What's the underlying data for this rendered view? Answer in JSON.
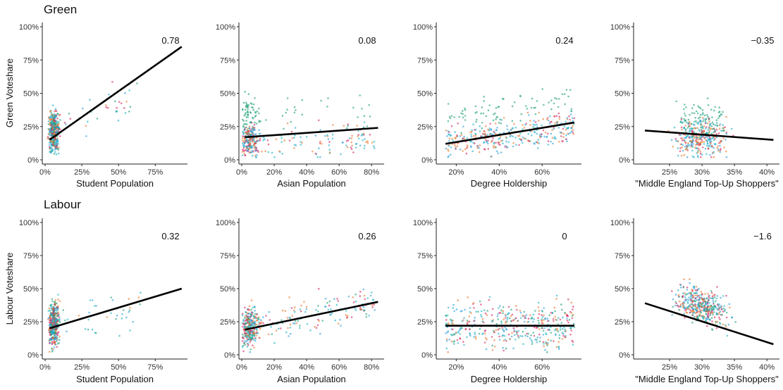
{
  "chart_data": {
    "type": "scatter",
    "rows": [
      {
        "title": "Green",
        "ylabel": "Green Voteshare",
        "ylim": [
          0,
          1
        ],
        "yticks": [
          "0%",
          "25%",
          "50%",
          "75%",
          "100%"
        ],
        "panels": [
          {
            "xlabel": "Student Population",
            "xlim": [
              0,
              0.95
            ],
            "xticks": [
              {
                "v": 0.0,
                "label": "0%"
              },
              {
                "v": 0.25,
                "label": "25%"
              },
              {
                "v": 0.5,
                "label": "50%"
              },
              {
                "v": 0.75,
                "label": "75%"
              }
            ],
            "correlation": "0.78",
            "fit_line": {
              "x": [
                0.03,
                0.93
              ],
              "y": [
                0.15,
                0.85
              ]
            }
          },
          {
            "xlabel": "Asian Population",
            "xlim": [
              0,
              0.86
            ],
            "xticks": [
              {
                "v": 0.0,
                "label": "0%"
              },
              {
                "v": 0.2,
                "label": "20%"
              },
              {
                "v": 0.4,
                "label": "40%"
              },
              {
                "v": 0.6,
                "label": "60%"
              },
              {
                "v": 0.8,
                "label": "80%"
              }
            ],
            "correlation": "0.08",
            "fit_line": {
              "x": [
                0.02,
                0.84
              ],
              "y": [
                0.17,
                0.24
              ]
            }
          },
          {
            "xlabel": "Degree Holdership",
            "xlim": [
              0.12,
              0.77
            ],
            "xticks": [
              {
                "v": 0.2,
                "label": "20%"
              },
              {
                "v": 0.4,
                "label": "40%"
              },
              {
                "v": 0.6,
                "label": "60%"
              }
            ],
            "correlation": "0.24",
            "fit_line": {
              "x": [
                0.15,
                0.75
              ],
              "y": [
                0.12,
                0.28
              ]
            }
          },
          {
            "xlabel": "\"Middle England Top-Up Shoppers\"",
            "xlim": [
              0.2,
              0.415
            ],
            "xticks": [
              {
                "v": 0.25,
                "label": "25%"
              },
              {
                "v": 0.3,
                "label": "30%"
              },
              {
                "v": 0.35,
                "label": "35%"
              },
              {
                "v": 0.4,
                "label": "40%"
              }
            ],
            "correlation": "−0.35",
            "fit_line": {
              "x": [
                0.212,
                0.41
              ],
              "y": [
                0.22,
                0.15
              ]
            }
          }
        ]
      },
      {
        "title": "Labour",
        "ylabel": "Labour Voteshare",
        "ylim": [
          0,
          1
        ],
        "yticks": [
          "0%",
          "25%",
          "50%",
          "75%",
          "100%"
        ],
        "panels": [
          {
            "xlabel": "Student Population",
            "xlim": [
              0,
              0.95
            ],
            "xticks": [
              {
                "v": 0.0,
                "label": "0%"
              },
              {
                "v": 0.25,
                "label": "25%"
              },
              {
                "v": 0.5,
                "label": "50%"
              },
              {
                "v": 0.75,
                "label": "75%"
              }
            ],
            "correlation": "0.32",
            "fit_line": {
              "x": [
                0.03,
                0.93
              ],
              "y": [
                0.2,
                0.5
              ]
            }
          },
          {
            "xlabel": "Asian Population",
            "xlim": [
              0,
              0.86
            ],
            "xticks": [
              {
                "v": 0.0,
                "label": "0%"
              },
              {
                "v": 0.2,
                "label": "20%"
              },
              {
                "v": 0.4,
                "label": "40%"
              },
              {
                "v": 0.6,
                "label": "60%"
              },
              {
                "v": 0.8,
                "label": "80%"
              }
            ],
            "correlation": "0.26",
            "fit_line": {
              "x": [
                0.02,
                0.84
              ],
              "y": [
                0.19,
                0.4
              ]
            }
          },
          {
            "xlabel": "Degree Holdership",
            "xlim": [
              0.12,
              0.77
            ],
            "xticks": [
              {
                "v": 0.2,
                "label": "20%"
              },
              {
                "v": 0.4,
                "label": "40%"
              },
              {
                "v": 0.6,
                "label": "60%"
              }
            ],
            "correlation": "0",
            "fit_line": {
              "x": [
                0.15,
                0.75
              ],
              "y": [
                0.22,
                0.22
              ]
            }
          },
          {
            "xlabel": "\"Middle England Top-Up Shoppers\"",
            "xlim": [
              0.2,
              0.415
            ],
            "xticks": [
              {
                "v": 0.25,
                "label": "25%"
              },
              {
                "v": 0.3,
                "label": "30%"
              },
              {
                "v": 0.35,
                "label": "35%"
              },
              {
                "v": 0.4,
                "label": "40%"
              }
            ],
            "correlation": "−1.6",
            "fit_line": {
              "x": [
                0.212,
                0.41
              ],
              "y": [
                0.39,
                0.08
              ]
            }
          }
        ]
      }
    ],
    "point_colors": [
      "#1a9e77",
      "#d6245f",
      "#e8762a",
      "#2a9fd8",
      "#17b3c4"
    ],
    "grid": false,
    "legend": "none"
  }
}
